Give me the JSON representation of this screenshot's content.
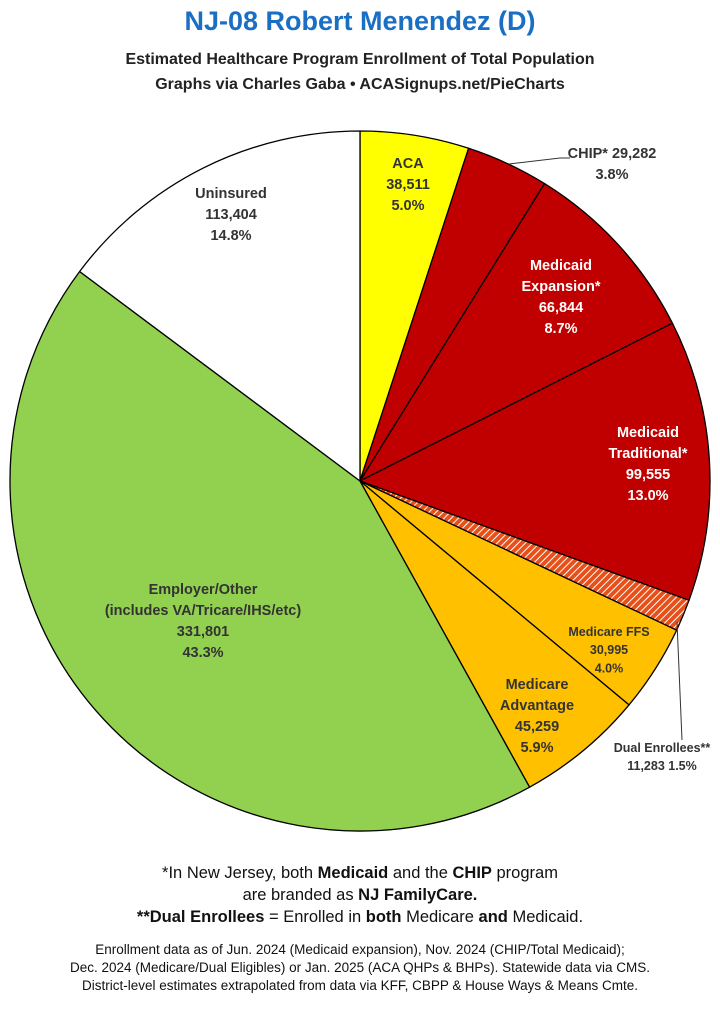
{
  "header": {
    "title": "NJ-08 Robert Menendez (D)",
    "subtitle_line1": "Estimated Healthcare Program Enrollment of Total Population",
    "subtitle_line2": "Graphs via Charles Gaba  •  ACASignups.net/PieCharts"
  },
  "chart_data": {
    "type": "pie",
    "start_angle_deg": 0,
    "direction": "clockwise",
    "slices": [
      {
        "id": "aca",
        "label_lines": [
          "ACA"
        ],
        "value": 38511,
        "value_text": "38,511",
        "percent": 5.0,
        "percent_text": "5.0%",
        "color": "#ffff00",
        "label_color": "#333333"
      },
      {
        "id": "chip",
        "label_lines": [
          "CHIP*"
        ],
        "value": 29282,
        "value_text": "29,282",
        "percent": 3.8,
        "percent_text": "3.8%",
        "color": "#c00000",
        "label_color": "#333333"
      },
      {
        "id": "medicaid-expansion",
        "label_lines": [
          "Medicaid",
          "Expansion*"
        ],
        "value": 66844,
        "value_text": "66,844",
        "percent": 8.7,
        "percent_text": "8.7%",
        "color": "#c00000",
        "label_color": "#ffffff"
      },
      {
        "id": "medicaid-traditional",
        "label_lines": [
          "Medicaid",
          "Traditional*"
        ],
        "value": 99555,
        "value_text": "99,555",
        "percent": 13.0,
        "percent_text": "13.0%",
        "color": "#c00000",
        "label_color": "#ffffff"
      },
      {
        "id": "dual-enrollees",
        "label_lines": [
          "Dual Enrollees**"
        ],
        "value": 11283,
        "value_text": "11,283",
        "percent": 1.5,
        "percent_text": "1.5%",
        "color": "#e8501a",
        "pattern": "hatch",
        "label_color": "#333333"
      },
      {
        "id": "medicare-ffs",
        "label_lines": [
          "Medicare FFS"
        ],
        "value": 30995,
        "value_text": "30,995",
        "percent": 4.0,
        "percent_text": "4.0%",
        "color": "#ffc000",
        "label_color": "#333333"
      },
      {
        "id": "medicare-advantage",
        "label_lines": [
          "Medicare",
          "Advantage"
        ],
        "value": 45259,
        "value_text": "45,259",
        "percent": 5.9,
        "percent_text": "5.9%",
        "color": "#ffc000",
        "label_color": "#333333"
      },
      {
        "id": "employer-other",
        "label_lines": [
          "Employer/Other",
          "(includes VA/Tricare/IHS/etc)"
        ],
        "value": 331801,
        "value_text": "331,801",
        "percent": 43.3,
        "percent_text": "43.3%",
        "color": "#92d050",
        "label_color": "#333333"
      },
      {
        "id": "uninsured",
        "label_lines": [
          "Uninsured"
        ],
        "value": 113404,
        "value_text": "113,404",
        "percent": 14.8,
        "percent_text": "14.8%",
        "color": "#ffffff",
        "label_color": "#333333"
      }
    ]
  },
  "notes": {
    "line1_a": "*In New Jersey, both ",
    "line1_b": "Medicaid",
    "line1_c": " and the ",
    "line1_d": "CHIP",
    "line1_e": " program",
    "line2_a": "are branded as ",
    "line2_b": "NJ FamilyCare.",
    "line3_a": "**Dual Enrollees",
    "line3_b": " = Enrolled in ",
    "line3_c": "both",
    "line3_d": " Medicare ",
    "line3_e": "and",
    "line3_f": " Medicaid."
  },
  "footer": {
    "line1": "Enrollment data as of Jun. 2024 (Medicaid expansion), Nov. 2024 (CHIP/Total Medicaid);",
    "line2": "Dec. 2024 (Medicare/Dual Eligibles) or Jan. 2025 (ACA QHPs & BHPs). Statewide data via CMS.",
    "line3": "District-level estimates extrapolated from data via KFF, CBPP & House Ways & Means Cmte."
  }
}
